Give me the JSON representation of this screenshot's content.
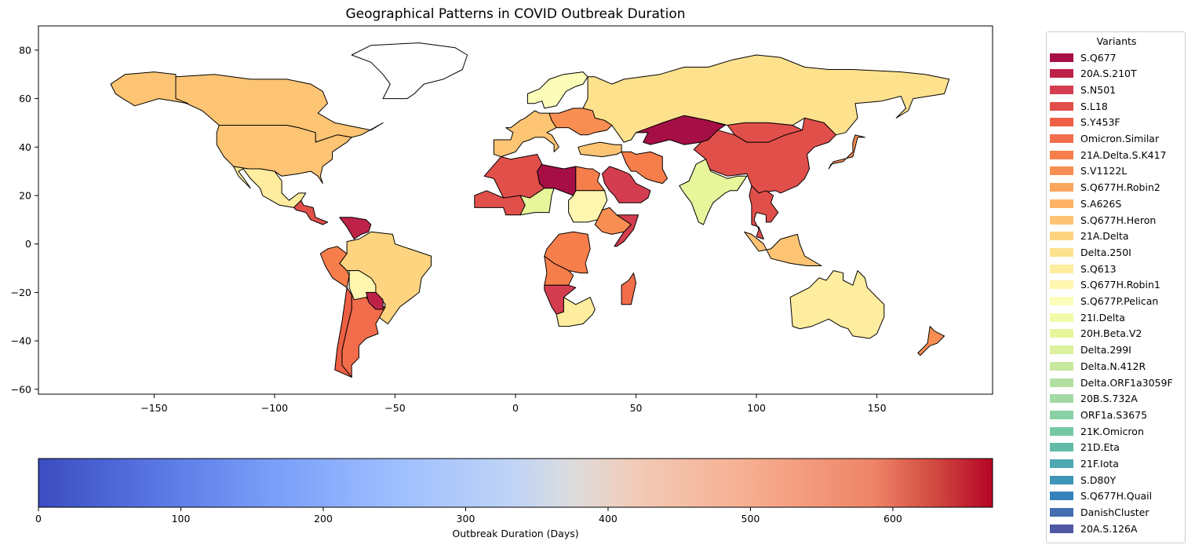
{
  "chart_data": {
    "type": "choropleth",
    "title": "Geographical Patterns in COVID Outbreak Duration",
    "map_axes": {
      "xlim": [
        -198,
        198
      ],
      "ylim": [
        -62,
        90
      ],
      "xticks": [
        -150,
        -100,
        -50,
        0,
        50,
        100,
        150
      ],
      "yticks": [
        -60,
        -40,
        -20,
        0,
        20,
        40,
        60,
        80
      ]
    },
    "colorbar": {
      "label": "Outbreak Duration (Days)",
      "range": [
        0,
        670
      ],
      "ticks": [
        0,
        100,
        200,
        300,
        400,
        500,
        600
      ],
      "colormap": "coolwarm"
    },
    "legend": {
      "title": "Variants",
      "location": "outside right",
      "items": [
        {
          "label": "S.Q677",
          "color": "#a50f45"
        },
        {
          "label": "20A.S.210T",
          "color": "#bf2249"
        },
        {
          "label": "S.N501",
          "color": "#d43d4f"
        },
        {
          "label": "S.L18",
          "color": "#e14f4a"
        },
        {
          "label": "S.Y453F",
          "color": "#ec5f44"
        },
        {
          "label": "Omicron.Similar",
          "color": "#f26d4b"
        },
        {
          "label": "21A.Delta.S.K417",
          "color": "#f67e4b"
        },
        {
          "label": "S.V1122L",
          "color": "#f98e52"
        },
        {
          "label": "S.Q677H.Robin2",
          "color": "#fca55d"
        },
        {
          "label": "S.A626S",
          "color": "#fdb365"
        },
        {
          "label": "S.Q677H.Heron",
          "color": "#fdc474"
        },
        {
          "label": "21A.Delta",
          "color": "#fed481"
        },
        {
          "label": "Delta.250I",
          "color": "#fee18d"
        },
        {
          "label": "S.Q613",
          "color": "#feec9f"
        },
        {
          "label": "S.Q677H.Robin1",
          "color": "#fff6b0"
        },
        {
          "label": "S.Q677P.Pelican",
          "color": "#fbfdb9"
        },
        {
          "label": "21I.Delta",
          "color": "#f2faaa"
        },
        {
          "label": "20H.Beta.V2",
          "color": "#e7f59b"
        },
        {
          "label": "Delta.299I",
          "color": "#dbf19c"
        },
        {
          "label": "Delta.N.412R",
          "color": "#c7e89e"
        },
        {
          "label": "Delta.ORF1a3059F",
          "color": "#b3e0a2"
        },
        {
          "label": "20B.S.732A",
          "color": "#a2d9a4"
        },
        {
          "label": "ORF1a.S3675",
          "color": "#89d0a5"
        },
        {
          "label": "21K.Omicron",
          "color": "#76c8a4"
        },
        {
          "label": "21D.Eta",
          "color": "#62bba6"
        },
        {
          "label": "21F.Iota",
          "color": "#4ea8b1"
        },
        {
          "label": "S.D80Y",
          "color": "#3f96b9"
        },
        {
          "label": "S.Q677H.Quail",
          "color": "#3682ba"
        },
        {
          "label": "DanishCluster",
          "color": "#436eb0"
        },
        {
          "label": "20A.S.126A",
          "color": "#5058a4"
        }
      ]
    },
    "regions": [
      {
        "name": "Canada",
        "color": "#fdc474"
      },
      {
        "name": "United States",
        "color": "#fdc474"
      },
      {
        "name": "Alaska",
        "color": "#fdc474"
      },
      {
        "name": "Greenland",
        "color": "#ffffff"
      },
      {
        "name": "Mexico",
        "color": "#feec9f"
      },
      {
        "name": "Central America",
        "color": "#e14f4a"
      },
      {
        "name": "Brazil",
        "color": "#fed481"
      },
      {
        "name": "Peru",
        "color": "#f67e4b"
      },
      {
        "name": "Argentina",
        "color": "#f26d4b"
      },
      {
        "name": "Chile",
        "color": "#ec5f44"
      },
      {
        "name": "Bolivia",
        "color": "#fff6b0"
      },
      {
        "name": "Paraguay",
        "color": "#bf2249"
      },
      {
        "name": "Venezuela",
        "color": "#bf2249"
      },
      {
        "name": "Russia",
        "color": "#fee18d"
      },
      {
        "name": "Kazakhstan",
        "color": "#a50f45"
      },
      {
        "name": "China",
        "color": "#e14f4a"
      },
      {
        "name": "Mongolia",
        "color": "#e14f4a"
      },
      {
        "name": "India",
        "color": "#e7f59b"
      },
      {
        "name": "Saudi Arabia",
        "color": "#d43d4f"
      },
      {
        "name": "Iran",
        "color": "#f67e4b"
      },
      {
        "name": "Libya",
        "color": "#a50f45"
      },
      {
        "name": "Algeria",
        "color": "#e14f4a"
      },
      {
        "name": "Mali",
        "color": "#e14f4a"
      },
      {
        "name": "Niger",
        "color": "#e7f59b"
      },
      {
        "name": "Egypt",
        "color": "#f67e4b"
      },
      {
        "name": "Sudan",
        "color": "#fff6b0"
      },
      {
        "name": "Ethiopia",
        "color": "#f98e52"
      },
      {
        "name": "Somalia",
        "color": "#d43d4f"
      },
      {
        "name": "Congo",
        "color": "#f67e4b"
      },
      {
        "name": "Angola",
        "color": "#f67e4b"
      },
      {
        "name": "Namibia",
        "color": "#d43d4f"
      },
      {
        "name": "South Africa",
        "color": "#feec9f"
      },
      {
        "name": "Madagascar",
        "color": "#f26d4b"
      },
      {
        "name": "Australia",
        "color": "#feec9f"
      },
      {
        "name": "New Zealand",
        "color": "#f98e52"
      },
      {
        "name": "Indonesia",
        "color": "#fdc474"
      },
      {
        "name": "Japan",
        "color": "#f98e52"
      },
      {
        "name": "Western Europe",
        "color": "#fdc474"
      },
      {
        "name": "Scandinavia",
        "color": "#fbfdb9"
      },
      {
        "name": "Eastern Europe",
        "color": "#f98e52"
      },
      {
        "name": "Turkey",
        "color": "#fdc474"
      },
      {
        "name": "Southeast Asia",
        "color": "#e14f4a"
      }
    ]
  }
}
